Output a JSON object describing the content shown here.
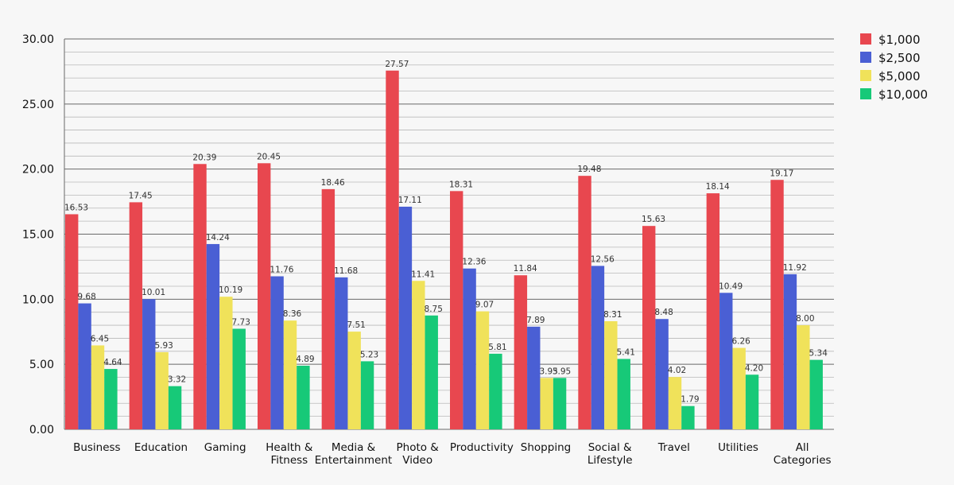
{
  "chart_data": {
    "type": "bar",
    "title": "",
    "xlabel": "",
    "ylabel": "",
    "ylim": [
      0,
      30
    ],
    "yticks": [
      0,
      5,
      10,
      15,
      20,
      25,
      30
    ],
    "ytick_labels": [
      "0.00",
      "5.00",
      "10.00",
      "15.00",
      "20.00",
      "25.00",
      "30.00"
    ],
    "grid": true,
    "legend_position": "top-right",
    "categories": [
      [
        "Business"
      ],
      [
        "Education"
      ],
      [
        "Gaming"
      ],
      [
        "Health &",
        "Fitness"
      ],
      [
        "Media &",
        "Entertainment"
      ],
      [
        "Photo &",
        "Video"
      ],
      [
        "Productivity"
      ],
      [
        "Shopping"
      ],
      [
        "Social &",
        "Lifestyle"
      ],
      [
        "Travel"
      ],
      [
        "Utilities"
      ],
      [
        "All",
        "Categories"
      ]
    ],
    "series": [
      {
        "name": "$1,000",
        "color": "#e8474f",
        "values": [
          16.53,
          17.45,
          20.39,
          20.45,
          18.46,
          27.57,
          18.31,
          11.84,
          19.48,
          15.63,
          18.14,
          19.17
        ],
        "labels": [
          "16.53",
          "17.45",
          "20.39",
          "20.45",
          "18.46",
          "27.57",
          "18.31",
          "11.84",
          "19.48",
          "15.63",
          "18.14",
          "19.17"
        ]
      },
      {
        "name": "$2,500",
        "color": "#4a5fd4",
        "values": [
          9.68,
          10.01,
          14.24,
          11.76,
          11.68,
          17.11,
          12.36,
          7.89,
          12.56,
          8.48,
          10.49,
          11.92
        ],
        "labels": [
          "9.68",
          "10.01",
          "14.24",
          "11.76",
          "11.68",
          "17.11",
          "12.36",
          "7.89",
          "12.56",
          "8.48",
          "10.49",
          "11.92"
        ]
      },
      {
        "name": "$5,000",
        "color": "#f0e25a",
        "values": [
          6.45,
          5.93,
          10.19,
          8.36,
          7.51,
          11.41,
          9.07,
          3.95,
          8.31,
          4.02,
          6.26,
          8.0
        ],
        "labels": [
          "6.45",
          "5.93",
          "10.19",
          "8.36",
          "7.51",
          "11.41",
          "9.07",
          "3.95",
          "8.31",
          "4.02",
          "6.26",
          "8.00"
        ]
      },
      {
        "name": "$10,000",
        "color": "#17c978",
        "values": [
          4.64,
          3.32,
          7.73,
          4.89,
          5.23,
          8.75,
          5.81,
          3.95,
          5.41,
          1.79,
          4.2,
          5.34
        ],
        "labels": [
          "4.64",
          "3.32",
          "7.73",
          "4.89",
          "5.23",
          "8.75",
          "5.81",
          "3.95",
          "5.41",
          "1.79",
          "4.20",
          "5.34"
        ]
      }
    ]
  }
}
